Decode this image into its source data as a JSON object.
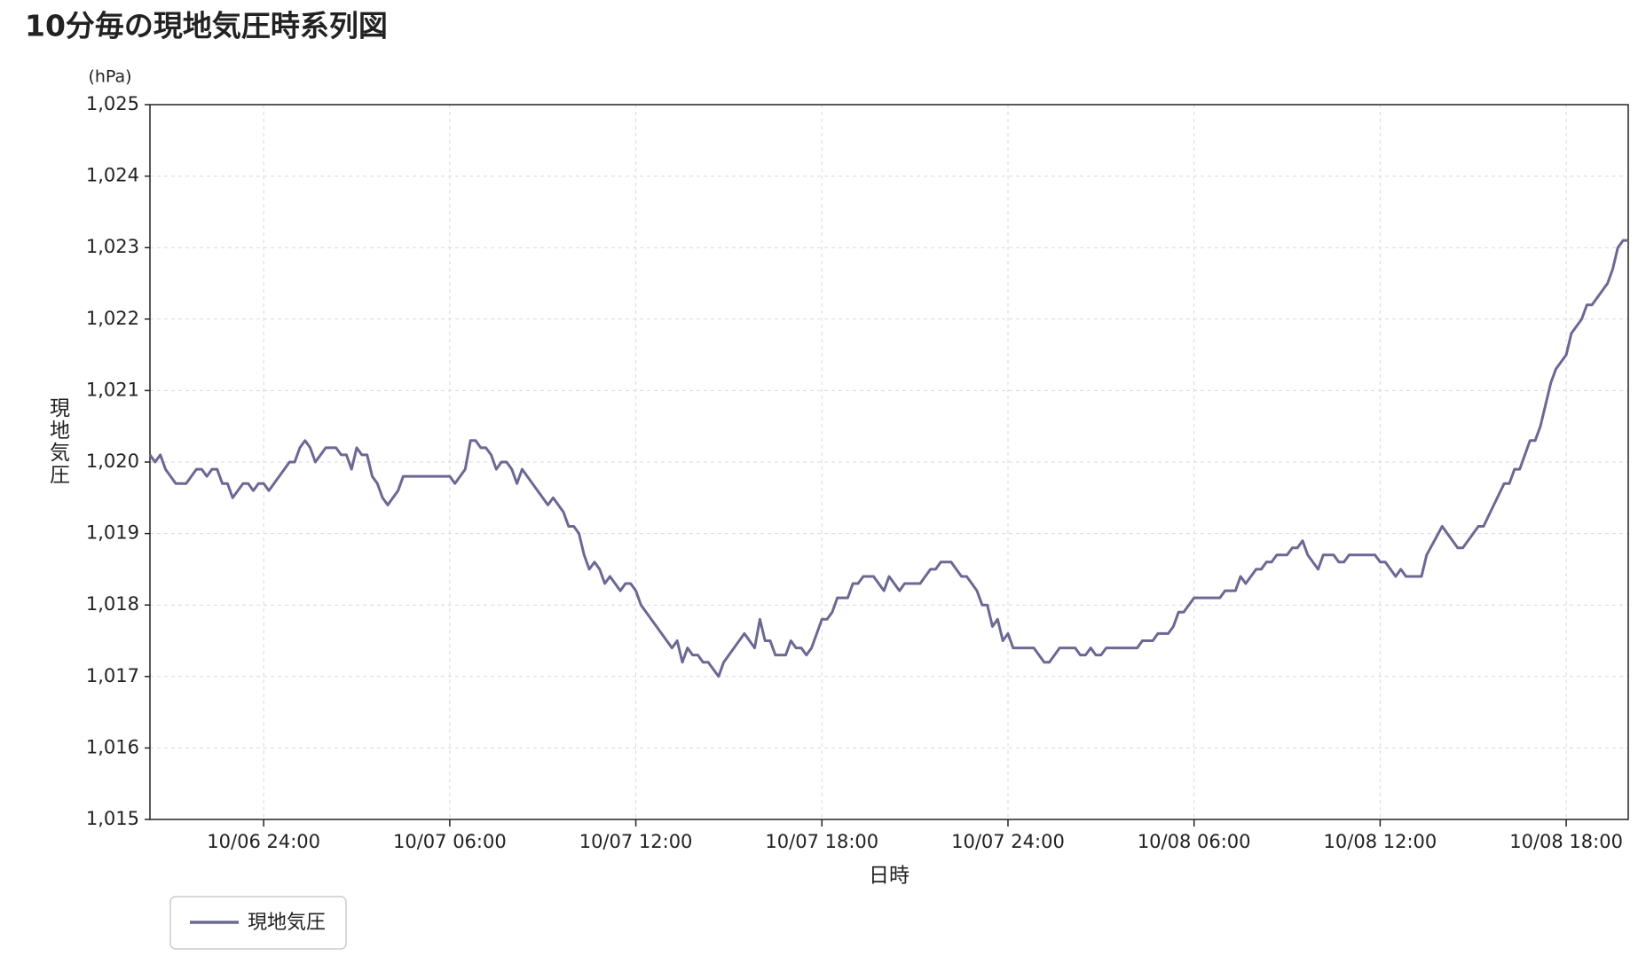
{
  "chart_data": {
    "type": "line",
    "title": "10分毎の現地気圧時系列図",
    "y_unit": "(hPa)",
    "y_label": "現地気圧",
    "x_label": "日時",
    "xlim": [
      "10/06 20:20",
      "10/08 20:00"
    ],
    "xticks": [
      {
        "value": "10/07 00:00",
        "label": "10/06 24:00"
      },
      {
        "value": "10/07 06:00",
        "label": "10/07 06:00"
      },
      {
        "value": "10/07 12:00",
        "label": "10/07 12:00"
      },
      {
        "value": "10/07 18:00",
        "label": "10/07 18:00"
      },
      {
        "value": "10/08 00:00",
        "label": "10/07 24:00"
      },
      {
        "value": "10/08 06:00",
        "label": "10/08 06:00"
      },
      {
        "value": "10/08 12:00",
        "label": "10/08 12:00"
      },
      {
        "value": "10/08 18:00",
        "label": "10/08 18:00"
      }
    ],
    "ylim": [
      1015,
      1025
    ],
    "yticks": [
      {
        "value": 1015,
        "label": "1,015"
      },
      {
        "value": 1016,
        "label": "1,016"
      },
      {
        "value": 1017,
        "label": "1,017"
      },
      {
        "value": 1018,
        "label": "1,018"
      },
      {
        "value": 1019,
        "label": "1,019"
      },
      {
        "value": 1020,
        "label": "1,020"
      },
      {
        "value": 1021,
        "label": "1,021"
      },
      {
        "value": 1022,
        "label": "1,022"
      },
      {
        "value": 1023,
        "label": "1,023"
      },
      {
        "value": 1024,
        "label": "1,024"
      },
      {
        "value": 1025,
        "label": "1,025"
      }
    ],
    "grid": true,
    "legend": "bottom-left",
    "x": [
      "10/06 20:20",
      "10/06 20:30",
      "10/06 20:40",
      "10/06 20:50",
      "10/06 21:10",
      "10/06 21:30",
      "10/06 21:50",
      "10/06 22:00",
      "10/06 22:10",
      "10/06 22:20",
      "10/06 22:30",
      "10/06 22:40",
      "10/06 22:50",
      "10/06 23:00",
      "10/06 23:20",
      "10/06 23:30",
      "10/06 23:40",
      "10/06 23:50",
      "10/07 00:00",
      "10/07 00:10",
      "10/07 00:50",
      "10/07 01:00",
      "10/07 01:10",
      "10/07 01:20",
      "10/07 01:30",
      "10/07 01:40",
      "10/07 02:00",
      "10/07 02:20",
      "10/07 02:30",
      "10/07 02:40",
      "10/07 02:50",
      "10/07 03:00",
      "10/07 03:10",
      "10/07 03:20",
      "10/07 03:30",
      "10/07 03:40",
      "10/07 03:50",
      "10/07 04:00",
      "10/07 04:20",
      "10/07 04:30",
      "10/07 06:00",
      "10/07 06:10",
      "10/07 06:30",
      "10/07 06:40",
      "10/07 06:50",
      "10/07 07:00",
      "10/07 07:10",
      "10/07 07:20",
      "10/07 07:30",
      "10/07 07:40",
      "10/07 07:50",
      "10/07 08:00",
      "10/07 08:10",
      "10/07 08:20",
      "10/07 09:10",
      "10/07 09:20",
      "10/07 09:30",
      "10/07 09:40",
      "10/07 09:50",
      "10/07 10:00",
      "10/07 10:10",
      "10/07 10:20",
      "10/07 10:30",
      "10/07 10:40",
      "10/07 10:50",
      "10/07 11:00",
      "10/07 11:10",
      "10/07 11:30",
      "10/07 11:40",
      "10/07 11:50",
      "10/07 12:00",
      "10/07 12:10",
      "10/07 13:10",
      "10/07 13:20",
      "10/07 13:30",
      "10/07 13:40",
      "10/07 13:50",
      "10/07 14:00",
      "10/07 14:10",
      "10/07 14:20",
      "10/07 14:40",
      "10/07 14:50",
      "10/07 15:30",
      "10/07 15:50",
      "10/07 16:00",
      "10/07 16:10",
      "10/07 16:20",
      "10/07 16:30",
      "10/07 16:50",
      "10/07 17:00",
      "10/07 17:10",
      "10/07 17:20",
      "10/07 17:30",
      "10/07 17:40",
      "10/07 18:00",
      "10/07 18:10",
      "10/07 18:20",
      "10/07 18:30",
      "10/07 18:50",
      "10/07 19:00",
      "10/07 19:10",
      "10/07 19:20",
      "10/07 19:40",
      "10/07 20:00",
      "10/07 20:10",
      "10/07 20:30",
      "10/07 20:40",
      "10/07 21:10",
      "10/07 21:30",
      "10/07 21:40",
      "10/07 21:50",
      "10/07 22:10",
      "10/07 22:30",
      "10/07 22:40",
      "10/07 22:50",
      "10/07 23:00",
      "10/07 23:10",
      "10/07 23:20",
      "10/07 23:30",
      "10/07 23:40",
      "10/07 23:50",
      "10/08 00:00",
      "10/08 00:10",
      "10/08 00:50",
      "10/08 01:10",
      "10/08 01:20",
      "10/08 01:40",
      "10/08 02:10",
      "10/08 02:20",
      "10/08 02:30",
      "10/08 02:40",
      "10/08 02:50",
      "10/08 03:00",
      "10/08 03:10",
      "10/08 04:10",
      "10/08 04:20",
      "10/08 04:40",
      "10/08 04:50",
      "10/08 05:10",
      "10/08 05:20",
      "10/08 05:30",
      "10/08 05:40",
      "10/08 06:00",
      "10/08 06:50",
      "10/08 07:00",
      "10/08 07:20",
      "10/08 07:30",
      "10/08 07:40",
      "10/08 08:00",
      "10/08 08:10",
      "10/08 08:20",
      "10/08 08:30",
      "10/08 08:40",
      "10/08 09:00",
      "10/08 09:10",
      "10/08 09:20",
      "10/08 09:30",
      "10/08 09:40",
      "10/08 10:00",
      "10/08 10:10",
      "10/08 10:30",
      "10/08 10:40",
      "10/08 10:50",
      "10/08 11:00",
      "10/08 11:50",
      "10/08 12:00",
      "10/08 12:10",
      "10/08 12:30",
      "10/08 12:40",
      "10/08 12:50",
      "10/08 13:20",
      "10/08 13:30",
      "10/08 14:00",
      "10/08 14:30",
      "10/08 14:40",
      "10/08 15:10",
      "10/08 15:20",
      "10/08 15:40",
      "10/08 16:00",
      "10/08 16:10",
      "10/08 16:20",
      "10/08 16:30",
      "10/08 16:50",
      "10/08 17:00",
      "10/08 17:10",
      "10/08 17:20",
      "10/08 17:30",
      "10/08 17:40",
      "10/08 18:00",
      "10/08 18:10",
      "10/08 18:30",
      "10/08 18:40",
      "10/08 18:50",
      "10/08 19:20",
      "10/08 19:30",
      "10/08 19:40",
      "10/08 19:50",
      "10/08 20:00"
    ],
    "series": [
      {
        "name": "現地気圧",
        "color": "#6b6893",
        "values": [
          1020.1,
          1020.0,
          1020.1,
          1019.9,
          1019.7,
          1019.7,
          1019.9,
          1019.9,
          1019.8,
          1019.9,
          1019.9,
          1019.7,
          1019.7,
          1019.5,
          1019.7,
          1019.7,
          1019.6,
          1019.7,
          1019.7,
          1019.6,
          1020.0,
          1020.0,
          1020.2,
          1020.3,
          1020.2,
          1020.0,
          1020.2,
          1020.2,
          1020.1,
          1020.1,
          1019.9,
          1020.2,
          1020.1,
          1020.1,
          1019.8,
          1019.7,
          1019.5,
          1019.4,
          1019.6,
          1019.8,
          1019.8,
          1019.7,
          1019.9,
          1020.3,
          1020.3,
          1020.2,
          1020.2,
          1020.1,
          1019.9,
          1020.0,
          1020.0,
          1019.9,
          1019.7,
          1019.9,
          1019.4,
          1019.5,
          1019.4,
          1019.3,
          1019.1,
          1019.1,
          1019.0,
          1018.7,
          1018.5,
          1018.6,
          1018.5,
          1018.3,
          1018.4,
          1018.2,
          1018.3,
          1018.3,
          1018.2,
          1018.0,
          1017.4,
          1017.5,
          1017.2,
          1017.4,
          1017.3,
          1017.3,
          1017.2,
          1017.2,
          1017.0,
          1017.2,
          1017.6,
          1017.4,
          1017.8,
          1017.5,
          1017.5,
          1017.3,
          1017.3,
          1017.5,
          1017.4,
          1017.4,
          1017.3,
          1017.4,
          1017.8,
          1017.8,
          1017.9,
          1018.1,
          1018.1,
          1018.3,
          1018.3,
          1018.4,
          1018.4,
          1018.2,
          1018.4,
          1018.2,
          1018.3,
          1018.3,
          1018.5,
          1018.5,
          1018.6,
          1018.6,
          1018.4,
          1018.4,
          1018.3,
          1018.2,
          1018.0,
          1018.0,
          1017.7,
          1017.8,
          1017.5,
          1017.6,
          1017.4,
          1017.4,
          1017.2,
          1017.2,
          1017.4,
          1017.4,
          1017.3,
          1017.3,
          1017.4,
          1017.3,
          1017.3,
          1017.4,
          1017.4,
          1017.5,
          1017.5,
          1017.6,
          1017.6,
          1017.7,
          1017.9,
          1017.9,
          1018.1,
          1018.1,
          1018.2,
          1018.2,
          1018.4,
          1018.3,
          1018.5,
          1018.5,
          1018.6,
          1018.6,
          1018.7,
          1018.7,
          1018.8,
          1018.8,
          1018.9,
          1018.7,
          1018.5,
          1018.7,
          1018.7,
          1018.6,
          1018.6,
          1018.7,
          1018.7,
          1018.6,
          1018.6,
          1018.4,
          1018.5,
          1018.4,
          1018.4,
          1018.7,
          1019.1,
          1018.8,
          1018.8,
          1019.1,
          1019.1,
          1019.4,
          1019.7,
          1019.7,
          1019.9,
          1019.9,
          1020.3,
          1020.3,
          1020.5,
          1020.8,
          1021.1,
          1021.3,
          1021.5,
          1021.8,
          1022.0,
          1022.2,
          1022.2,
          1022.5,
          1022.7,
          1023.0,
          1023.1,
          1023.1
        ]
      }
    ]
  }
}
